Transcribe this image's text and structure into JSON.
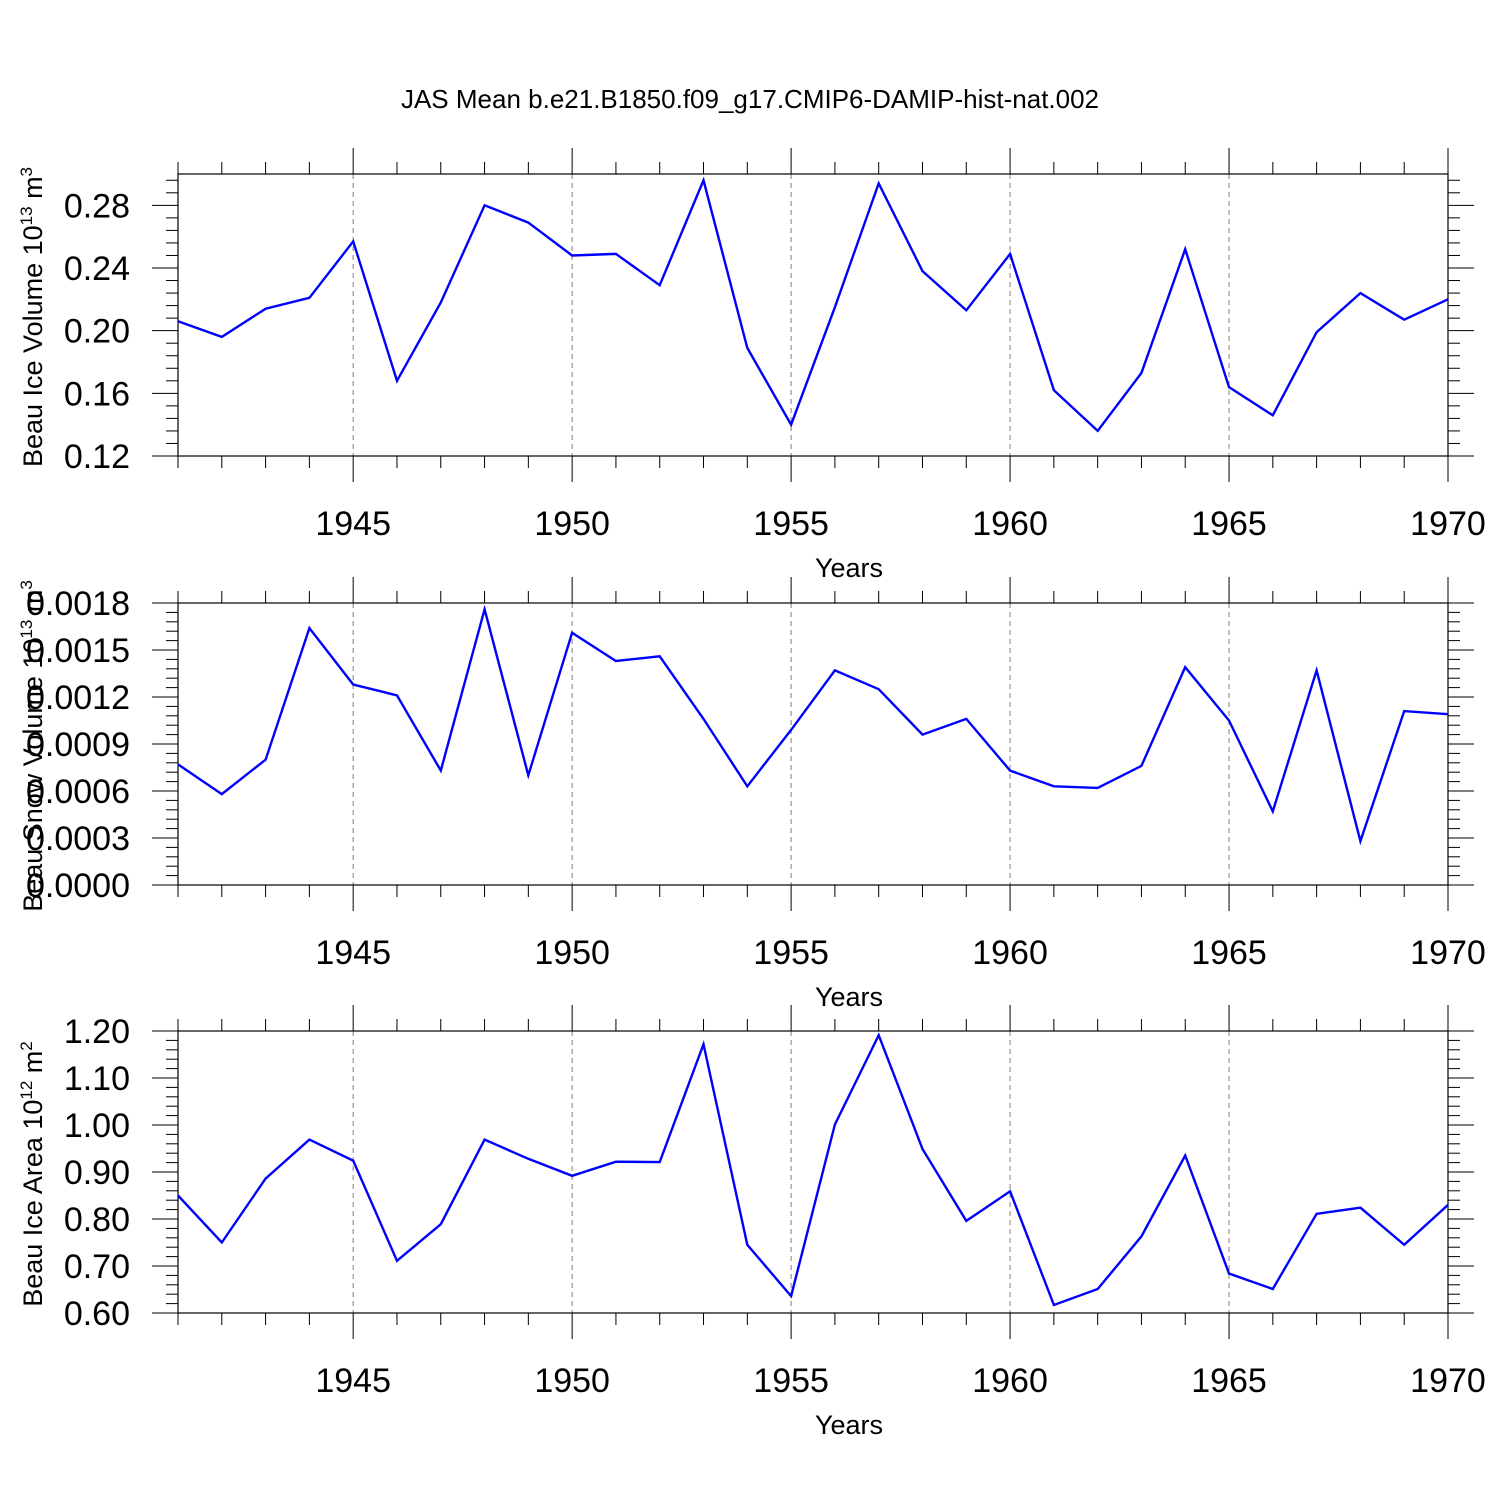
{
  "title": "JAS Mean b.e21.B1850.f09_g17.CMIP6-DAMIP-hist-nat.002",
  "colors": {
    "series": "#0000ff",
    "axis": "#000000",
    "grid": "#808080"
  },
  "chart_data": [
    {
      "type": "line",
      "ylabel": {
        "text": "Beau Ice Volume 10",
        "sup": "13",
        "unit": " m",
        "unit_sup": "3"
      },
      "xlabel": "Years",
      "xlim": [
        1941,
        1970
      ],
      "ylim": [
        0.12,
        0.3
      ],
      "yticks": [
        "0.12",
        "0.16",
        "0.20",
        "0.24",
        "0.28"
      ],
      "ytick_values": [
        0.12,
        0.16,
        0.2,
        0.24,
        0.28
      ],
      "xticks": [
        1945,
        1950,
        1955,
        1960,
        1965,
        1970
      ],
      "grid": "dashed vertical at major x ticks",
      "x": [
        1941,
        1942,
        1943,
        1944,
        1945,
        1946,
        1947,
        1948,
        1949,
        1950,
        1951,
        1952,
        1953,
        1954,
        1955,
        1956,
        1957,
        1958,
        1959,
        1960,
        1961,
        1962,
        1963,
        1964,
        1965,
        1966,
        1967,
        1968,
        1969,
        1970
      ],
      "series": [
        {
          "values": [
            0.206,
            0.196,
            0.214,
            0.221,
            0.257,
            0.168,
            0.218,
            0.28,
            0.269,
            0.248,
            0.249,
            0.229,
            0.296,
            0.189,
            0.14,
            0.215,
            0.294,
            0.238,
            0.213,
            0.249,
            0.162,
            0.136,
            0.173,
            0.252,
            0.164,
            0.146,
            0.199,
            0.224,
            0.207,
            0.22
          ]
        }
      ]
    },
    {
      "type": "line",
      "ylabel": {
        "text": "Beau Snow Volume 10",
        "sup": "13",
        "unit": " m",
        "unit_sup": "3"
      },
      "xlabel": "Years",
      "xlim": [
        1941,
        1970
      ],
      "ylim": [
        0.0,
        0.0018
      ],
      "yticks": [
        "0.0000",
        "0.0003",
        "0.0006",
        "0.0009",
        "0.0012",
        "0.0015",
        "0.0018"
      ],
      "ytick_values": [
        0.0,
        0.0003,
        0.0006,
        0.0009,
        0.0012,
        0.0015,
        0.0018
      ],
      "xticks": [
        1945,
        1950,
        1955,
        1960,
        1965,
        1970
      ],
      "grid": "dashed vertical at major x ticks",
      "x": [
        1941,
        1942,
        1943,
        1944,
        1945,
        1946,
        1947,
        1948,
        1949,
        1950,
        1951,
        1952,
        1953,
        1954,
        1955,
        1956,
        1957,
        1958,
        1959,
        1960,
        1961,
        1962,
        1963,
        1964,
        1965,
        1966,
        1967,
        1968,
        1969,
        1970
      ],
      "series": [
        {
          "values": [
            0.00077,
            0.00058,
            0.0008,
            0.00164,
            0.00128,
            0.00121,
            0.00073,
            0.00176,
            0.0007,
            0.00161,
            0.00143,
            0.00146,
            0.00106,
            0.00063,
            0.00099,
            0.00137,
            0.00125,
            0.00096,
            0.00106,
            0.00073,
            0.00063,
            0.00062,
            0.00076,
            0.00139,
            0.00105,
            0.00047,
            0.00137,
            0.00028,
            0.00111,
            0.00109
          ]
        }
      ]
    },
    {
      "type": "line",
      "ylabel": {
        "text": "Beau Ice Area 10",
        "sup": "12",
        "unit": " m",
        "unit_sup": "2"
      },
      "xlabel": "Years",
      "xlim": [
        1941,
        1970
      ],
      "ylim": [
        0.6,
        1.2
      ],
      "yticks": [
        "0.60",
        "0.70",
        "0.80",
        "0.90",
        "1.00",
        "1.10",
        "1.20"
      ],
      "ytick_values": [
        0.6,
        0.7,
        0.8,
        0.9,
        1.0,
        1.1,
        1.2
      ],
      "xticks": [
        1945,
        1950,
        1955,
        1960,
        1965,
        1970
      ],
      "grid": "dashed vertical at major x ticks",
      "x": [
        1941,
        1942,
        1943,
        1944,
        1945,
        1946,
        1947,
        1948,
        1949,
        1950,
        1951,
        1952,
        1953,
        1954,
        1955,
        1956,
        1957,
        1958,
        1959,
        1960,
        1961,
        1962,
        1963,
        1964,
        1965,
        1966,
        1967,
        1968,
        1969,
        1970
      ],
      "series": [
        {
          "values": [
            0.85,
            0.75,
            0.886,
            0.969,
            0.924,
            0.711,
            0.789,
            0.969,
            0.928,
            0.892,
            0.922,
            0.921,
            1.172,
            0.745,
            0.636,
            1.001,
            1.191,
            0.949,
            0.796,
            0.859,
            0.617,
            0.651,
            0.763,
            0.935,
            0.684,
            0.651,
            0.811,
            0.824,
            0.745,
            0.83
          ]
        }
      ]
    }
  ]
}
